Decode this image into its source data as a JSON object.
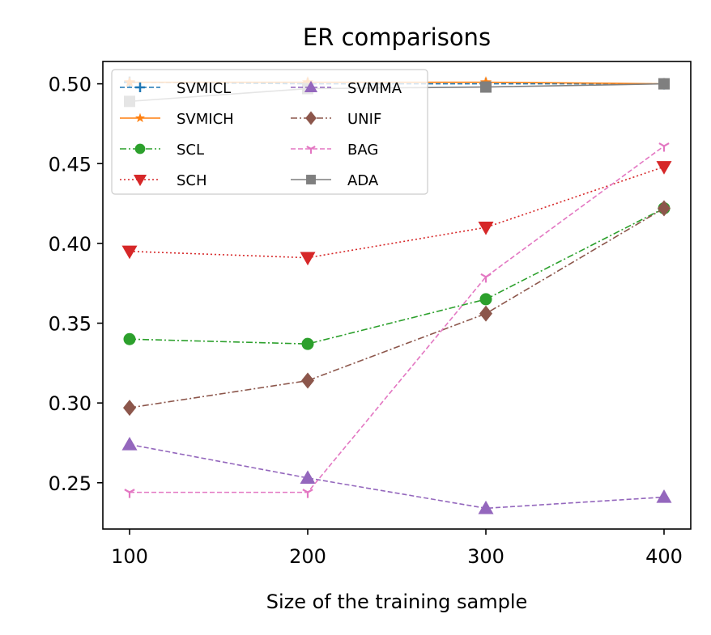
{
  "chart_data": {
    "type": "line",
    "title": "ER comparisons",
    "xlabel": "Size of the training sample",
    "ylabel": "",
    "x": [
      100,
      200,
      300,
      400
    ],
    "xlim": [
      85,
      415
    ],
    "ylim": [
      0.221,
      0.514
    ],
    "xticks": [
      100,
      200,
      300,
      400
    ],
    "yticks": [
      0.25,
      0.3,
      0.35,
      0.4,
      0.45,
      0.5
    ],
    "ytick_labels": [
      "0.25",
      "0.30",
      "0.35",
      "0.40",
      "0.45",
      "0.50"
    ],
    "xtick_labels": [
      "100",
      "200",
      "300",
      "400"
    ],
    "legend_position": "top-left",
    "series": [
      {
        "name": "SVMICL",
        "color": "#1f77b4",
        "marker": "plus",
        "dash": "6,3",
        "values": [
          0.501,
          0.5,
          0.5,
          0.5
        ]
      },
      {
        "name": "SVMICH",
        "color": "#ff7f0e",
        "marker": "star",
        "dash": "",
        "values": [
          0.501,
          0.501,
          0.501,
          0.5
        ]
      },
      {
        "name": "SCL",
        "color": "#2ca02c",
        "marker": "circle",
        "dash": "8,3,2,3",
        "values": [
          0.34,
          0.337,
          0.365,
          0.422
        ]
      },
      {
        "name": "SCH",
        "color": "#d62728",
        "marker": "triangle-down",
        "dash": "2,3",
        "values": [
          0.395,
          0.391,
          0.41,
          0.448
        ]
      },
      {
        "name": "SVMMA",
        "color": "#9467bd",
        "marker": "triangle-up",
        "dash": "6,3",
        "values": [
          0.274,
          0.253,
          0.234,
          0.241
        ]
      },
      {
        "name": "UNIF",
        "color": "#8c564b",
        "marker": "diamond",
        "dash": "8,3,2,3",
        "values": [
          0.297,
          0.314,
          0.356,
          0.422
        ]
      },
      {
        "name": "BAG",
        "color": "#e377c2",
        "marker": "tri-down",
        "dash": "6,3",
        "values": [
          0.244,
          0.244,
          0.379,
          0.461
        ]
      },
      {
        "name": "ADA",
        "color": "#7f7f7f",
        "marker": "square",
        "dash": "",
        "values": [
          0.489,
          0.497,
          0.498,
          0.5
        ]
      }
    ]
  }
}
